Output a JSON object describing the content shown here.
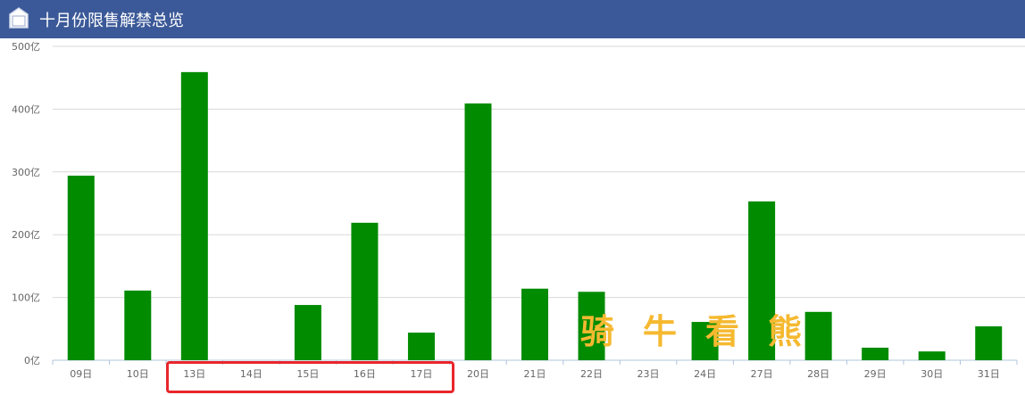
{
  "header": {
    "title": "十月份限售解禁总览",
    "icon": "home-icon"
  },
  "watermark": [
    "骑",
    "牛",
    "看",
    "熊"
  ],
  "chart_data": {
    "type": "bar",
    "categories": [
      "09日",
      "10日",
      "13日",
      "14日",
      "15日",
      "16日",
      "17日",
      "20日",
      "21日",
      "22日",
      "23日",
      "24日",
      "27日",
      "28日",
      "29日",
      "30日",
      "31日"
    ],
    "values": [
      294,
      111,
      459,
      0,
      88,
      219,
      44,
      409,
      114,
      109,
      0,
      61,
      253,
      77,
      20,
      14,
      54
    ],
    "ylim": [
      0,
      500
    ],
    "yticks": [
      0,
      100,
      200,
      300,
      400,
      500
    ],
    "ytick_suffix": "亿",
    "grid": true,
    "bar_color": "#008b00",
    "highlight": {
      "categories": [
        "13日",
        "14日",
        "15日",
        "16日",
        "17日"
      ],
      "color": "#e8262b"
    }
  }
}
